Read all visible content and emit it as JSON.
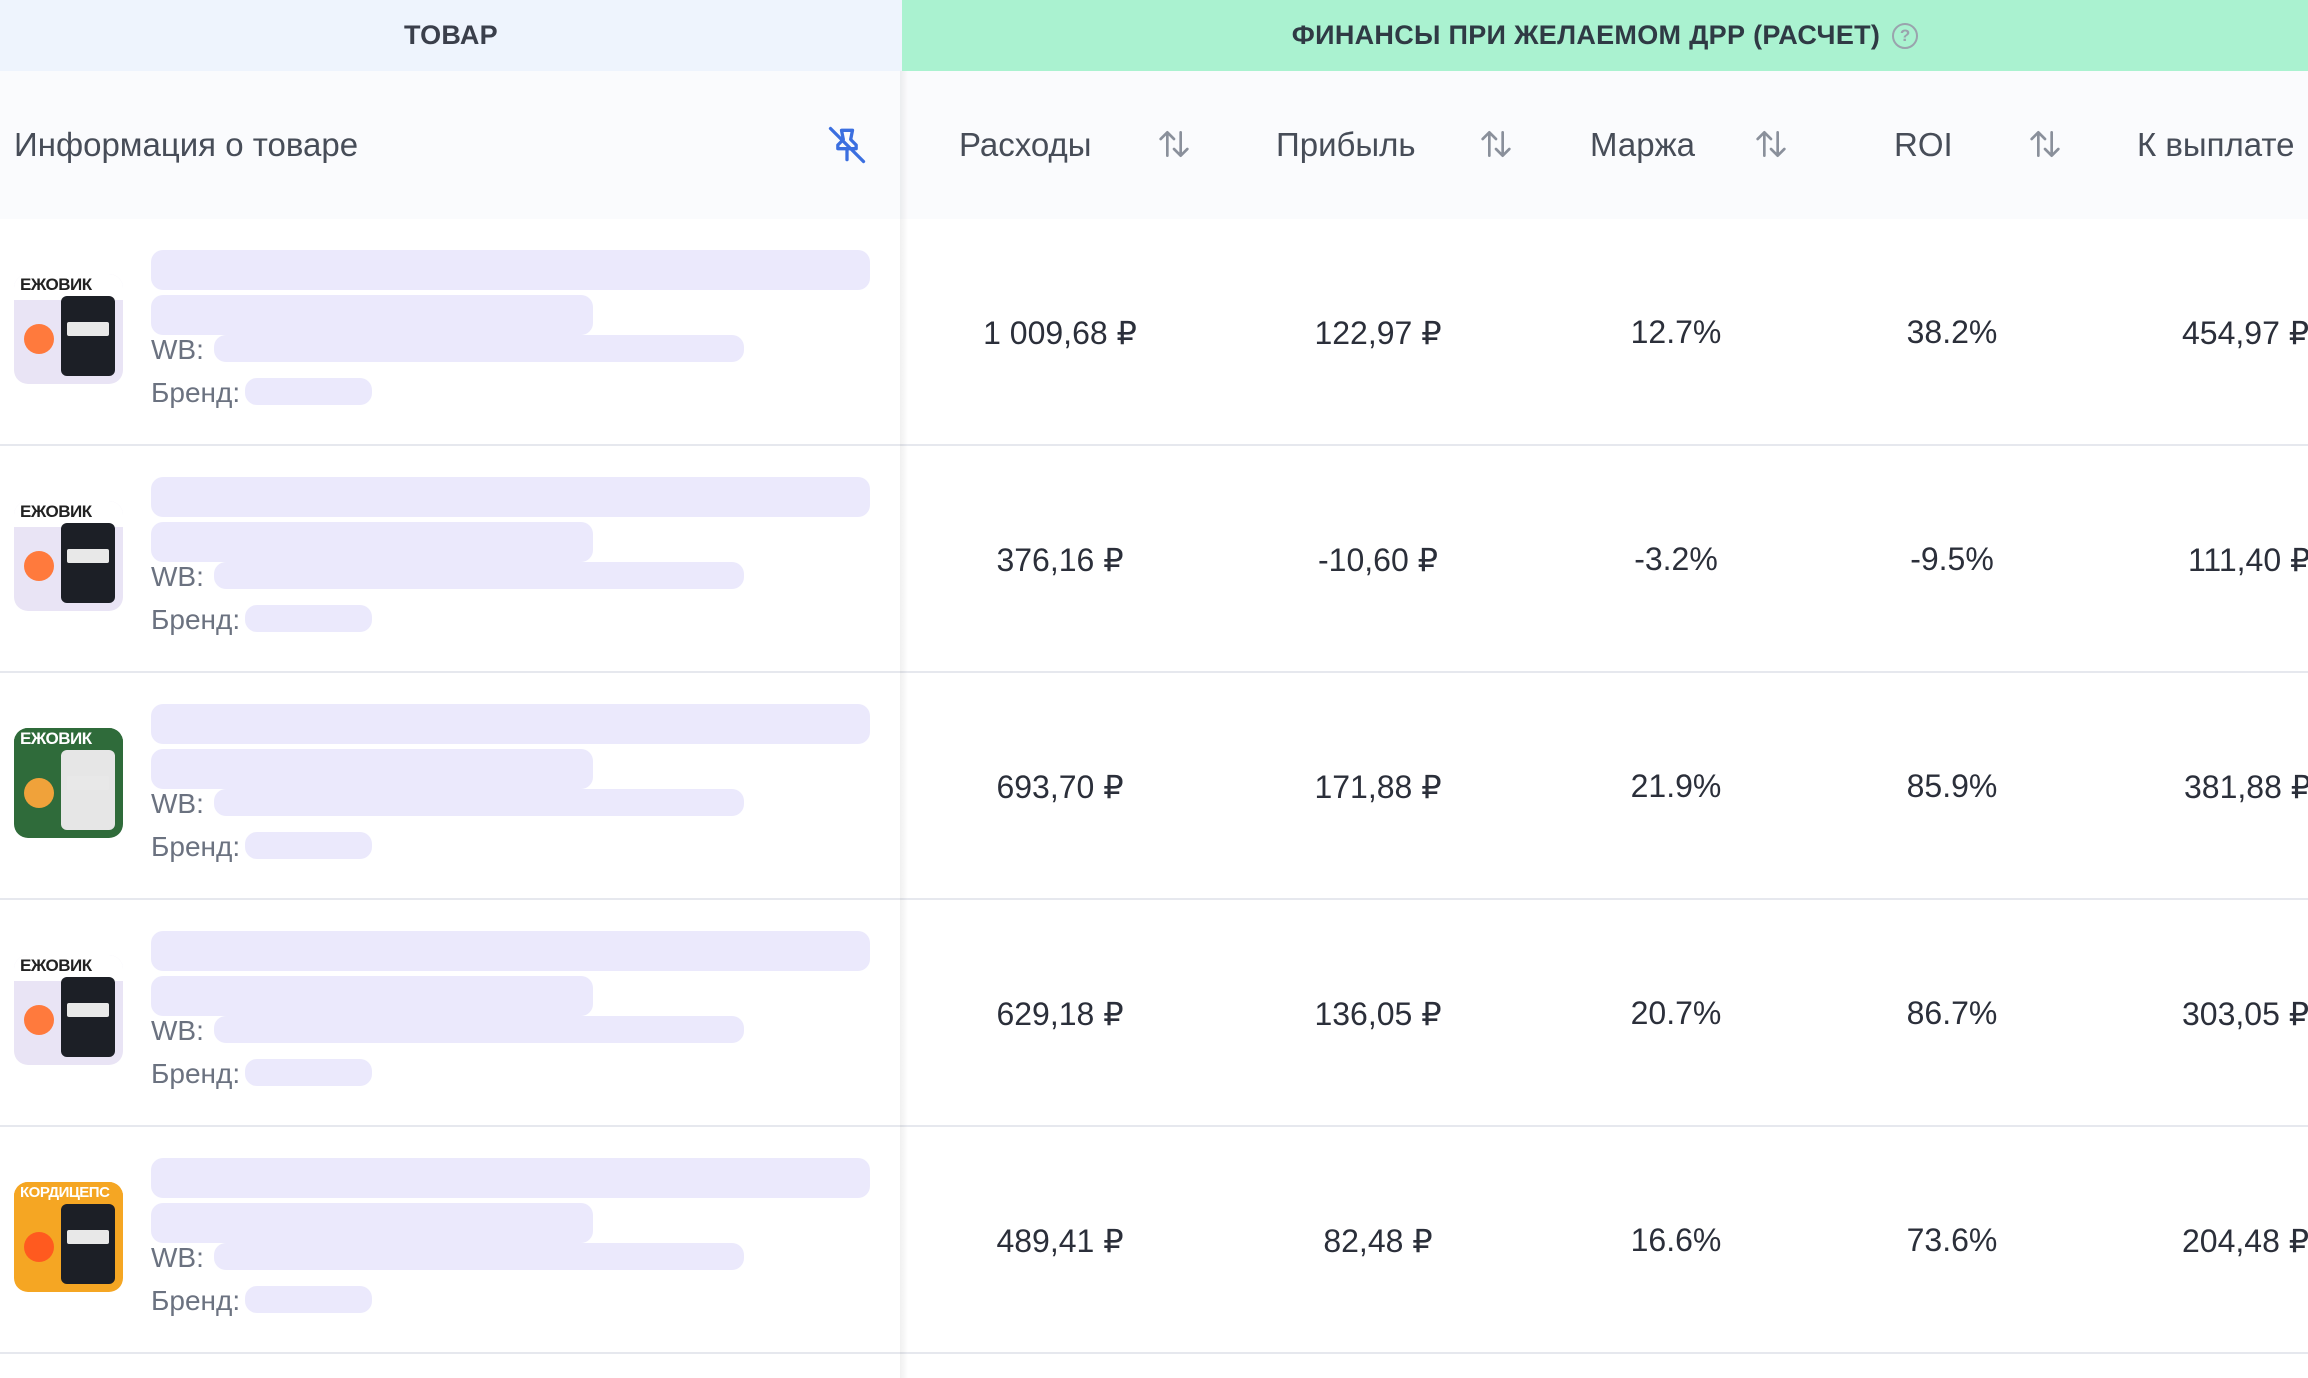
{
  "group_headers": {
    "product": "ТОВАР",
    "finance": "ФИНАНСЫ ПРИ ЖЕЛАЕМОМ ДРР (РАСЧЕТ)"
  },
  "columns": {
    "info": "Информация о товаре",
    "expenses": "Расходы",
    "profit": "Прибыль",
    "margin": "Маржа",
    "roi": "ROI",
    "payout": "К выплате"
  },
  "icons": {
    "pin": "pin-off-icon",
    "sort": "sort-arrows-icon",
    "help": "help-circle-icon"
  },
  "labels": {
    "wb": "WB:",
    "brand": "Бренд:"
  },
  "rows": [
    {
      "thumb_title": "ЕЖОВИК",
      "thumb_bg": "#e9e4f5",
      "expenses": "1 009,68 ₽",
      "profit": "122,97 ₽",
      "margin": "12.7%",
      "roi": "38.2%",
      "payout": "454,97 ₽"
    },
    {
      "thumb_title": "ЕЖОВИК",
      "thumb_bg": "#e9e4f5",
      "expenses": "376,16 ₽",
      "profit": "-10,60 ₽",
      "margin": "-3.2%",
      "roi": "-9.5%",
      "payout": "111,40 ₽"
    },
    {
      "thumb_title": "ЕЖОВИК",
      "thumb_bg": "#2f6b3a",
      "expenses": "693,70 ₽",
      "profit": "171,88 ₽",
      "margin": "21.9%",
      "roi": "85.9%",
      "payout": "381,88 ₽"
    },
    {
      "thumb_title": "ЕЖОВИК",
      "thumb_bg": "#e9e4f5",
      "expenses": "629,18 ₽",
      "profit": "136,05 ₽",
      "margin": "20.7%",
      "roi": "86.7%",
      "payout": "303,05 ₽"
    },
    {
      "thumb_title": "КОРДИЦЕПС",
      "thumb_bg": "#f5a623",
      "expenses": "489,41 ₽",
      "profit": "82,48 ₽",
      "margin": "16.6%",
      "roi": "73.6%",
      "payout": "204,48 ₽"
    }
  ]
}
